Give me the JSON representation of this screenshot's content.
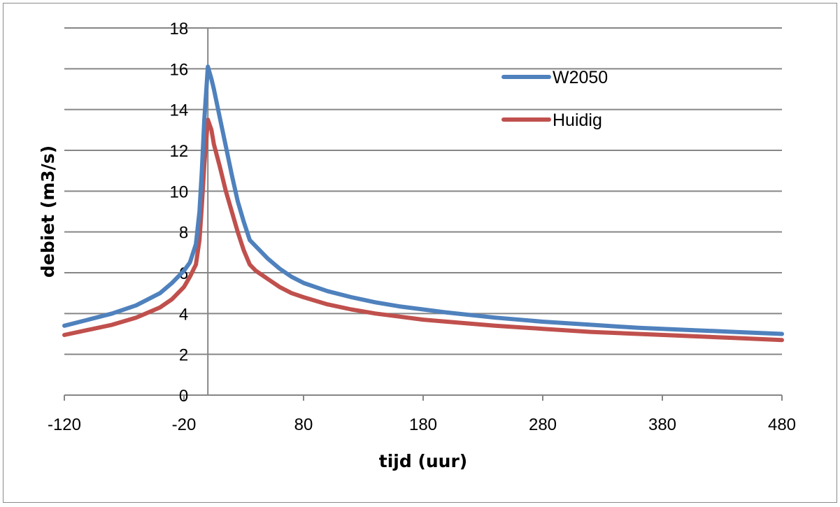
{
  "chart_data": {
    "type": "line",
    "title": "",
    "xlabel": "tijd (uur)",
    "ylabel": "debiet (m3/s)",
    "xlim": [
      -120,
      480
    ],
    "ylim": [
      0,
      18
    ],
    "xticks": [
      -120,
      -20,
      80,
      180,
      280,
      380,
      480
    ],
    "xtick_labels": [
      "-120",
      "-20",
      "80",
      "180",
      "280",
      "380",
      "480"
    ],
    "yticks": [
      0,
      2,
      4,
      6,
      8,
      10,
      12,
      14,
      16,
      18
    ],
    "ytick_labels": [
      "0",
      "2",
      "4",
      "6",
      "8",
      "10",
      "12",
      "14",
      "16",
      "18"
    ],
    "y_axis_crosses_x_at": 0,
    "grid": "horizontal",
    "legend": "top-right",
    "series": [
      {
        "name": "W2050",
        "color": "#4f81bd",
        "x": [
          -120,
          -100,
          -80,
          -60,
          -40,
          -30,
          -20,
          -15,
          -10,
          -7,
          -5,
          -3,
          0,
          3,
          5,
          10,
          15,
          20,
          25,
          30,
          35,
          40,
          50,
          60,
          70,
          80,
          100,
          120,
          140,
          160,
          180,
          200,
          240,
          280,
          320,
          360,
          400,
          440,
          480
        ],
        "values": [
          3.4,
          3.7,
          4.0,
          4.4,
          5.0,
          5.5,
          6.1,
          6.5,
          7.4,
          9.0,
          11.0,
          13.5,
          16.1,
          15.5,
          15.0,
          13.6,
          12.2,
          10.8,
          9.5,
          8.5,
          7.6,
          7.3,
          6.7,
          6.2,
          5.8,
          5.5,
          5.1,
          4.8,
          4.55,
          4.35,
          4.2,
          4.05,
          3.8,
          3.6,
          3.45,
          3.3,
          3.2,
          3.1,
          3.0
        ]
      },
      {
        "name": "Huidig",
        "color": "#c0504d",
        "x": [
          -120,
          -100,
          -80,
          -60,
          -40,
          -30,
          -20,
          -15,
          -10,
          -7,
          -5,
          -3,
          0,
          3,
          5,
          10,
          15,
          20,
          25,
          30,
          35,
          40,
          50,
          60,
          70,
          80,
          100,
          120,
          140,
          160,
          180,
          200,
          240,
          280,
          320,
          360,
          400,
          440,
          480
        ],
        "values": [
          2.95,
          3.2,
          3.45,
          3.8,
          4.3,
          4.7,
          5.3,
          5.8,
          6.4,
          7.6,
          9.3,
          11.3,
          13.5,
          13.0,
          12.3,
          11.2,
          10.0,
          9.0,
          8.0,
          7.1,
          6.4,
          6.1,
          5.7,
          5.3,
          5.0,
          4.8,
          4.45,
          4.2,
          4.0,
          3.85,
          3.7,
          3.6,
          3.4,
          3.25,
          3.1,
          3.0,
          2.9,
          2.8,
          2.7
        ]
      }
    ]
  }
}
